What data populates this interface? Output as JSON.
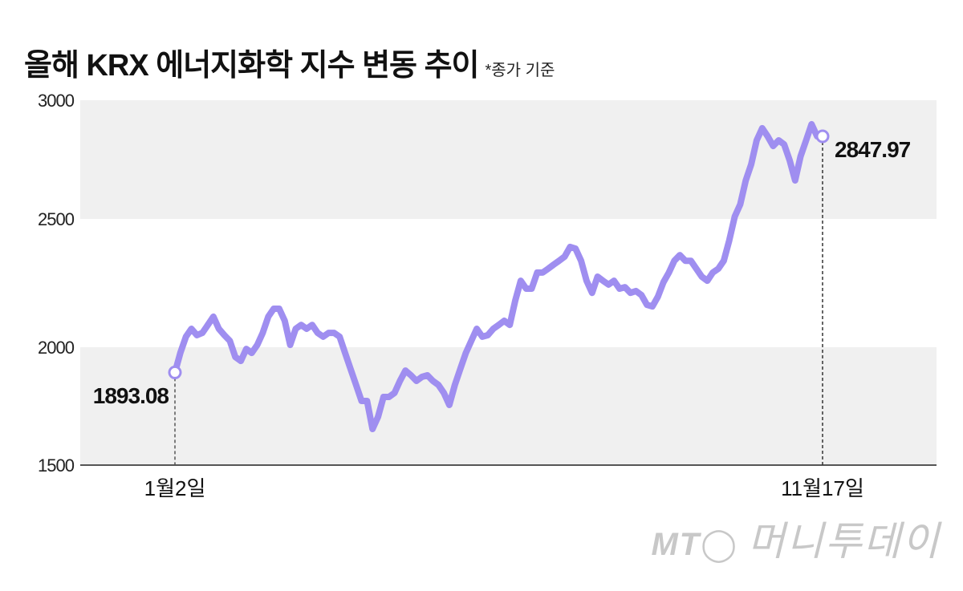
{
  "header": {
    "title": "올해 KRX 에너지화학 지수 변동 추이",
    "note": "*종가 기준"
  },
  "logo": {
    "mark": "MT",
    "name": "머니투데이"
  },
  "chart_data": {
    "type": "line",
    "title": "올해 KRX 에너지화학 지수 변동 추이",
    "subtitle": "*종가 기준",
    "xlabel": "",
    "ylabel": "",
    "ylim": [
      1500,
      3000
    ],
    "yticks": [
      "1500",
      "2000",
      "2500",
      "3000"
    ],
    "xticks": [
      "1월2일",
      "11월17일"
    ],
    "grid": "alternating horizontal bands",
    "line_color": "#9f8ef0",
    "band_color": "#f0f0f0",
    "start": {
      "label": "1월2일",
      "value": 1893.08,
      "text": "1893.08"
    },
    "end": {
      "label": "11월17일",
      "value": 2847.97,
      "text": "2847.97"
    },
    "values": [
      1893,
      1977,
      2041,
      2072,
      2047,
      2056,
      2087,
      2119,
      2072,
      2047,
      2025,
      1959,
      1942,
      1993,
      1976,
      2009,
      2056,
      2119,
      2150,
      2150,
      2103,
      2009,
      2072,
      2087,
      2072,
      2087,
      2056,
      2041,
      2056,
      2056,
      2041,
      1976,
      1908,
      1840,
      1772,
      1772,
      1653,
      1704,
      1789,
      1789,
      1806,
      1857,
      1901,
      1881,
      1857,
      1874,
      1881,
      1857,
      1840,
      1806,
      1755,
      1840,
      1908,
      1976,
      2025,
      2072,
      2041,
      2047,
      2072,
      2087,
      2103,
      2087,
      2181,
      2259,
      2228,
      2228,
      2291,
      2291,
      2306,
      2322,
      2337,
      2353,
      2391,
      2384,
      2337,
      2259,
      2212,
      2275,
      2259,
      2244,
      2259,
      2228,
      2234,
      2212,
      2219,
      2203,
      2165,
      2159,
      2197,
      2253,
      2291,
      2337,
      2359,
      2337,
      2337,
      2306,
      2275,
      2259,
      2291,
      2306,
      2337,
      2416,
      2510,
      2561,
      2662,
      2730,
      2831,
      2882,
      2848,
      2807,
      2831,
      2814,
      2747,
      2662,
      2764,
      2831,
      2899,
      2848,
      2848
    ]
  }
}
